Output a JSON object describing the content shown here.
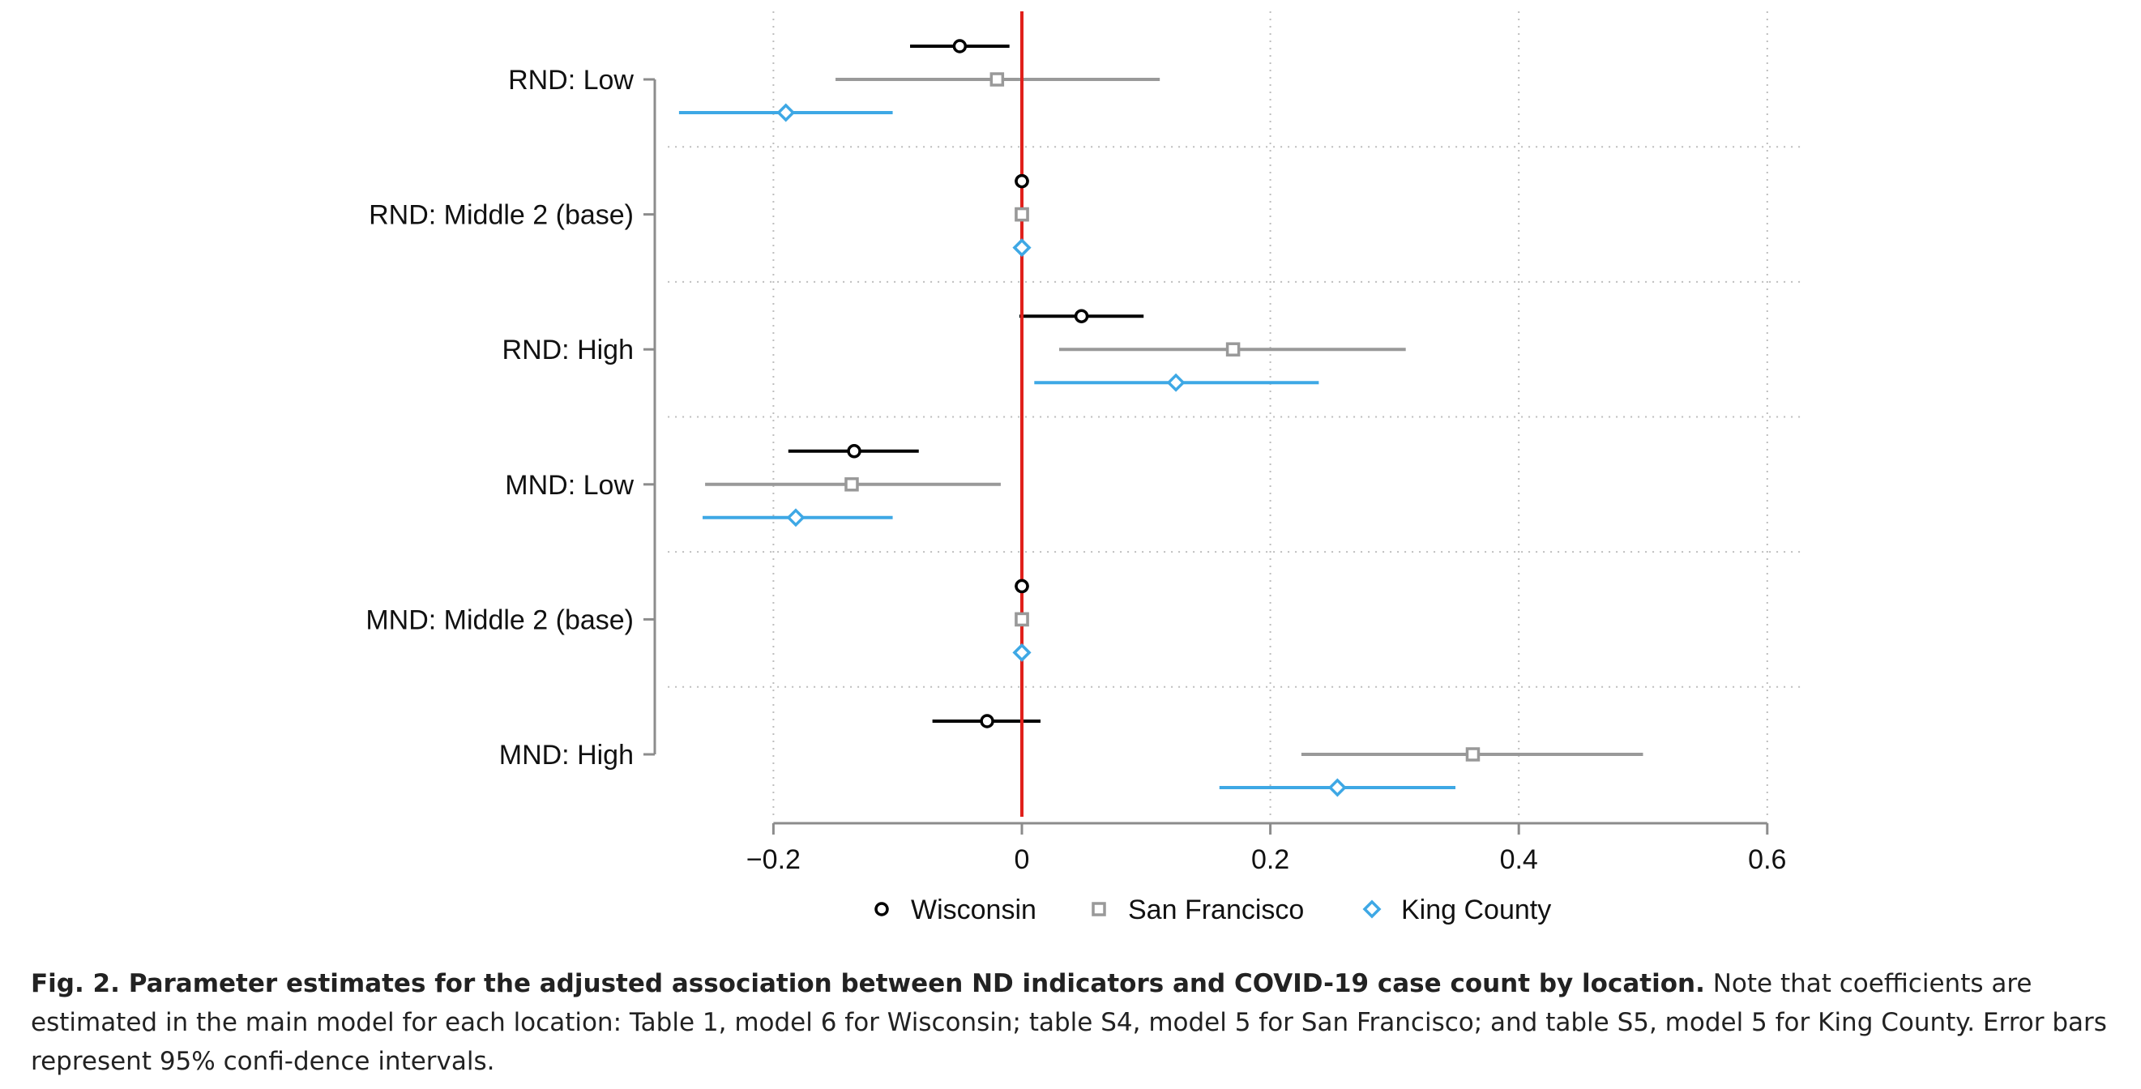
{
  "chart_data": {
    "type": "dot-whisker",
    "orientation": "horizontal",
    "categories": [
      "RND: Low",
      "RND: Middle 2 (base)",
      "RND: High",
      "MND: Low",
      "MND: Middle 2 (base)",
      "MND: High"
    ],
    "x_ticks": [
      "−0.2",
      "0",
      "0.2",
      "0.4",
      "0.6"
    ],
    "x_tick_values": [
      -0.2,
      0,
      0.2,
      0.4,
      0.6
    ],
    "xlim": [
      -0.285,
      0.6
    ],
    "reference_line": {
      "x": 0,
      "color": "#e0201b"
    },
    "grid": "dotted vertical at ticks; dotted horizontal between categories",
    "legend_position": "bottom",
    "series": [
      {
        "name": "Wisconsin",
        "marker": "circle",
        "color": "#000000",
        "estimates": [
          -0.05,
          0.0,
          0.048,
          -0.135,
          0.0,
          -0.028
        ],
        "ci_low": [
          -0.09,
          0.0,
          -0.002,
          -0.188,
          0.0,
          -0.072
        ],
        "ci_high": [
          -0.01,
          0.0,
          0.098,
          -0.083,
          0.0,
          0.015
        ]
      },
      {
        "name": "San Francisco",
        "marker": "square",
        "color": "#999999",
        "estimates": [
          -0.02,
          0.0,
          0.17,
          -0.137,
          0.0,
          0.363
        ],
        "ci_low": [
          -0.15,
          0.0,
          0.03,
          -0.255,
          0.0,
          0.225
        ],
        "ci_high": [
          0.111,
          0.0,
          0.309,
          -0.017,
          0.0,
          0.5
        ]
      },
      {
        "name": "King County",
        "marker": "diamond",
        "color": "#3ea8e5",
        "estimates": [
          -0.19,
          0.0,
          0.124,
          -0.182,
          0.0,
          0.254
        ],
        "ci_low": [
          -0.276,
          0.0,
          0.01,
          -0.257,
          0.0,
          0.159
        ],
        "ci_high": [
          -0.104,
          0.0,
          0.239,
          -0.104,
          0.0,
          0.349
        ]
      }
    ]
  },
  "caption": {
    "bold": "Fig. 2. Parameter estimates for the adjusted association between ND indicators and COVID-19 case count by location.",
    "text": " Note that coefficients are estimated in the main model for each location: Table 1, model 6 for Wisconsin; table S4, model 5 for San Francisco; and table S5, model 5 for King County. Error bars represent 95% confi-dence intervals."
  }
}
